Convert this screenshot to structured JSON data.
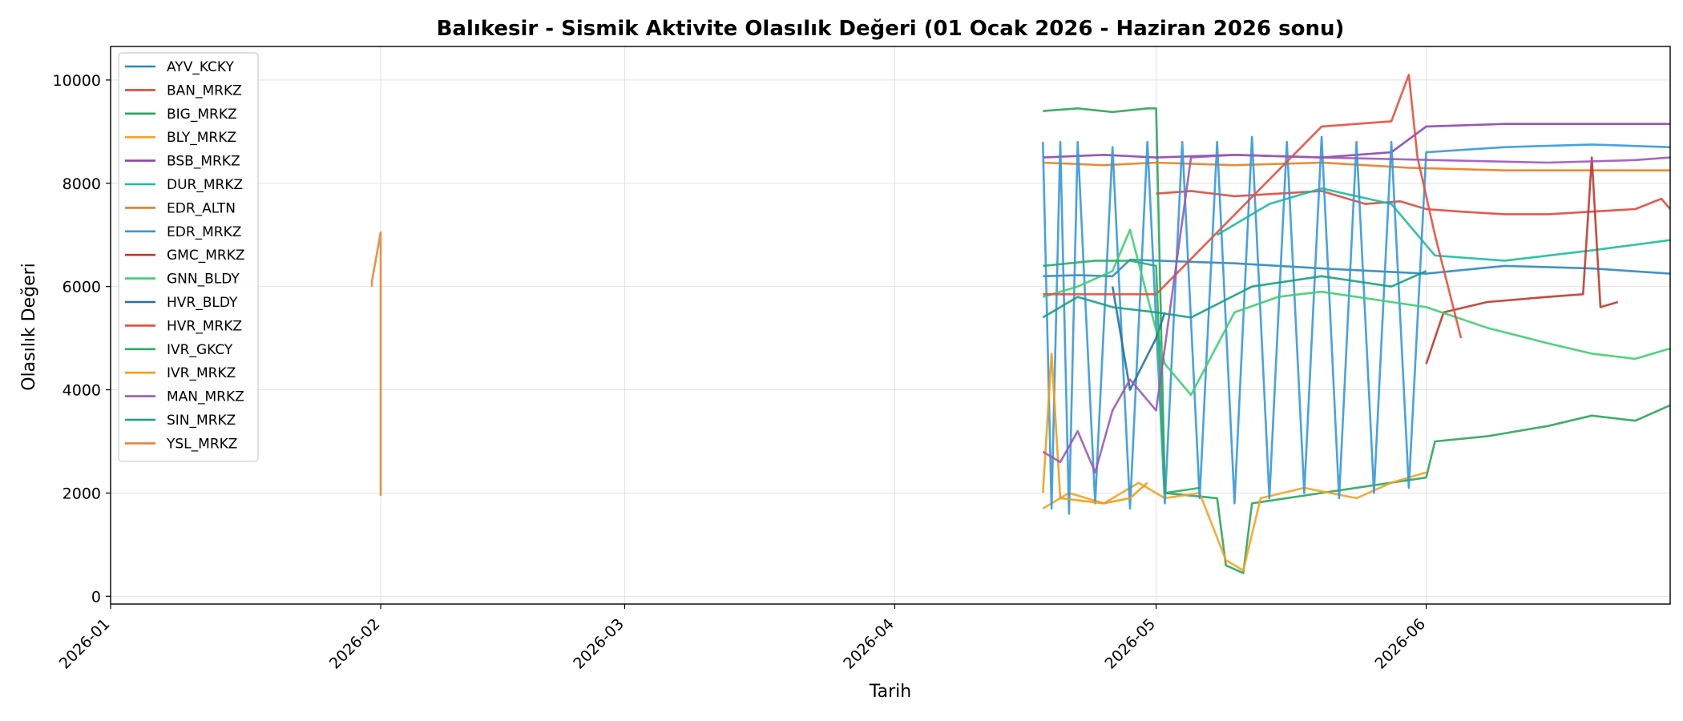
{
  "chart_data": {
    "type": "line",
    "title": "Balıkesir - Sismik Aktivite Olasılık Değeri (01 Ocak 2026 - Haziran 2026 sonu)",
    "xlabel": "Tarih",
    "ylabel": "Olasılık Değeri",
    "xlim": [
      "2026-01-01",
      "2026-06-29"
    ],
    "ylim": [
      -150,
      10650
    ],
    "x_ticks": [
      "2026-01",
      "2026-02",
      "2026-03",
      "2026-04",
      "2026-05",
      "2026-06"
    ],
    "y_ticks": [
      0,
      2000,
      4000,
      6000,
      8000,
      10000
    ],
    "grid": true,
    "legend_position": "upper-left",
    "series": [
      {
        "name": "AYV_KCKY",
        "color": "#2f86c0",
        "points": [
          [
            "2026-04-18",
            6200
          ],
          [
            "2026-04-22",
            6220
          ],
          [
            "2026-04-26",
            6200
          ],
          [
            "2026-04-28",
            6520
          ],
          [
            "2026-05-10",
            6450
          ],
          [
            "2026-05-20",
            6350
          ],
          [
            "2026-06-01",
            6250
          ],
          [
            "2026-06-10",
            6400
          ],
          [
            "2026-06-20",
            6350
          ],
          [
            "2026-06-29",
            6250
          ]
        ]
      },
      {
        "name": "BAN_MRKZ",
        "color": "#e0473c",
        "points": [
          [
            "2026-05-01",
            7800
          ],
          [
            "2026-05-05",
            7850
          ],
          [
            "2026-05-10",
            7750
          ],
          [
            "2026-05-15",
            7800
          ],
          [
            "2026-05-20",
            7850
          ],
          [
            "2026-05-25",
            7600
          ],
          [
            "2026-05-29",
            7650
          ],
          [
            "2026-06-01",
            7500
          ],
          [
            "2026-06-05",
            7450
          ],
          [
            "2026-06-10",
            7400
          ],
          [
            "2026-06-15",
            7400
          ],
          [
            "2026-06-20",
            7450
          ],
          [
            "2026-06-25",
            7500
          ],
          [
            "2026-06-28",
            7700
          ],
          [
            "2026-06-29",
            7500
          ]
        ]
      },
      {
        "name": "BIG_MRKZ",
        "color": "#2aa55a",
        "points": [
          [
            "2026-04-18",
            9400
          ],
          [
            "2026-04-22",
            9450
          ],
          [
            "2026-04-26",
            9380
          ],
          [
            "2026-04-30",
            9450
          ],
          [
            "2026-05-01",
            9450
          ],
          [
            "2026-05-02",
            2000
          ],
          [
            "2026-05-08",
            1900
          ],
          [
            "2026-05-09",
            600
          ],
          [
            "2026-05-11",
            450
          ],
          [
            "2026-05-12",
            1800
          ],
          [
            "2026-05-20",
            2000
          ],
          [
            "2026-06-01",
            2300
          ],
          [
            "2026-06-02",
            3000
          ],
          [
            "2026-06-08",
            3100
          ],
          [
            "2026-06-15",
            3300
          ],
          [
            "2026-06-20",
            3500
          ],
          [
            "2026-06-25",
            3400
          ],
          [
            "2026-06-29",
            3700
          ]
        ]
      },
      {
        "name": "BLY_MRKZ",
        "color": "#f2a323",
        "points": [
          [
            "2026-04-18",
            1700
          ],
          [
            "2026-04-21",
            2000
          ],
          [
            "2026-04-25",
            1800
          ],
          [
            "2026-04-29",
            2200
          ],
          [
            "2026-05-02",
            1900
          ],
          [
            "2026-05-06",
            2000
          ],
          [
            "2026-05-09",
            700
          ],
          [
            "2026-05-11",
            500
          ],
          [
            "2026-05-13",
            1900
          ],
          [
            "2026-05-18",
            2100
          ],
          [
            "2026-05-24",
            1900
          ],
          [
            "2026-05-28",
            2200
          ],
          [
            "2026-06-01",
            2400
          ]
        ]
      },
      {
        "name": "BSB_MRKZ",
        "color": "#8e44ad",
        "points": [
          [
            "2026-04-18",
            8500
          ],
          [
            "2026-04-25",
            8550
          ],
          [
            "2026-05-01",
            8500
          ],
          [
            "2026-05-10",
            8550
          ],
          [
            "2026-05-20",
            8500
          ],
          [
            "2026-05-28",
            8600
          ],
          [
            "2026-06-01",
            9100
          ],
          [
            "2026-06-10",
            9150
          ],
          [
            "2026-06-20",
            9150
          ],
          [
            "2026-06-29",
            9150
          ]
        ]
      },
      {
        "name": "DUR_MRKZ",
        "color": "#1abc9c",
        "points": [
          [
            "2026-05-08",
            7000
          ],
          [
            "2026-05-14",
            7600
          ],
          [
            "2026-05-20",
            7900
          ],
          [
            "2026-05-28",
            7600
          ],
          [
            "2026-06-02",
            6600
          ],
          [
            "2026-06-10",
            6500
          ],
          [
            "2026-06-20",
            6700
          ],
          [
            "2026-06-29",
            6900
          ]
        ]
      },
      {
        "name": "EDR_ALTN",
        "color": "#e67e22",
        "points": [
          [
            "2026-04-18",
            8400
          ],
          [
            "2026-04-25",
            8350
          ],
          [
            "2026-05-01",
            8400
          ],
          [
            "2026-05-10",
            8350
          ],
          [
            "2026-05-20",
            8400
          ],
          [
            "2026-05-30",
            8300
          ],
          [
            "2026-06-10",
            8250
          ],
          [
            "2026-06-20",
            8250
          ],
          [
            "2026-06-29",
            8250
          ]
        ]
      },
      {
        "name": "EDR_MRKZ",
        "color": "#3498db",
        "points": [
          [
            "2026-04-18",
            8800
          ],
          [
            "2026-04-19",
            1700
          ],
          [
            "2026-04-20",
            8800
          ],
          [
            "2026-04-21",
            1600
          ],
          [
            "2026-04-22",
            8800
          ],
          [
            "2026-04-24",
            1800
          ],
          [
            "2026-04-26",
            8700
          ],
          [
            "2026-04-28",
            1700
          ],
          [
            "2026-04-30",
            8800
          ],
          [
            "2026-05-02",
            1800
          ],
          [
            "2026-05-04",
            8800
          ],
          [
            "2026-05-06",
            1900
          ],
          [
            "2026-05-08",
            8800
          ],
          [
            "2026-05-10",
            1800
          ],
          [
            "2026-05-12",
            8900
          ],
          [
            "2026-05-14",
            1900
          ],
          [
            "2026-05-16",
            8800
          ],
          [
            "2026-05-18",
            2000
          ],
          [
            "2026-05-20",
            8900
          ],
          [
            "2026-05-22",
            1900
          ],
          [
            "2026-05-24",
            8800
          ],
          [
            "2026-05-26",
            2000
          ],
          [
            "2026-05-28",
            8800
          ],
          [
            "2026-05-30",
            2100
          ],
          [
            "2026-06-01",
            8600
          ],
          [
            "2026-06-10",
            8700
          ],
          [
            "2026-06-20",
            8750
          ],
          [
            "2026-06-29",
            8700
          ]
        ]
      },
      {
        "name": "GMC_MRKZ",
        "color": "#c0392b",
        "points": [
          [
            "2026-06-01",
            4500
          ],
          [
            "2026-06-03",
            5500
          ],
          [
            "2026-06-08",
            5700
          ],
          [
            "2026-06-15",
            5800
          ],
          [
            "2026-06-19",
            5850
          ],
          [
            "2026-06-20",
            8500
          ],
          [
            "2026-06-21",
            5600
          ],
          [
            "2026-06-23",
            5700
          ]
        ]
      },
      {
        "name": "GNN_BLDY",
        "color": "#3ccf6e",
        "points": [
          [
            "2026-04-18",
            5800
          ],
          [
            "2026-04-22",
            6000
          ],
          [
            "2026-04-26",
            6300
          ],
          [
            "2026-04-28",
            7100
          ],
          [
            "2026-05-02",
            4500
          ],
          [
            "2026-05-05",
            3900
          ],
          [
            "2026-05-10",
            5500
          ],
          [
            "2026-05-15",
            5800
          ],
          [
            "2026-05-20",
            5900
          ],
          [
            "2026-05-28",
            5700
          ],
          [
            "2026-06-01",
            5600
          ],
          [
            "2026-06-08",
            5200
          ],
          [
            "2026-06-15",
            4900
          ],
          [
            "2026-06-20",
            4700
          ],
          [
            "2026-06-25",
            4600
          ],
          [
            "2026-06-29",
            4800
          ]
        ]
      },
      {
        "name": "HVR_BLDY",
        "color": "#2471a3",
        "points": [
          [
            "2026-04-26",
            6000
          ],
          [
            "2026-04-28",
            4000
          ],
          [
            "2026-05-01",
            5000
          ],
          [
            "2026-05-02",
            5500
          ]
        ]
      },
      {
        "name": "HVR_MRKZ",
        "color": "#e74c3c",
        "points": [
          [
            "2026-04-18",
            5850
          ],
          [
            "2026-04-25",
            5850
          ],
          [
            "2026-05-01",
            5850
          ],
          [
            "2026-05-20",
            9100
          ],
          [
            "2026-05-24",
            9150
          ],
          [
            "2026-05-28",
            9200
          ],
          [
            "2026-05-30",
            10100
          ],
          [
            "2026-05-31",
            8500
          ],
          [
            "2026-06-02",
            7000
          ],
          [
            "2026-06-05",
            5000
          ]
        ]
      },
      {
        "name": "IVR_GKCY",
        "color": "#27ae60",
        "points": [
          [
            "2026-04-18",
            6400
          ],
          [
            "2026-04-24",
            6500
          ],
          [
            "2026-04-28",
            6500
          ],
          [
            "2026-05-01",
            6400
          ],
          [
            "2026-05-02",
            2000
          ],
          [
            "2026-05-06",
            2100
          ]
        ]
      },
      {
        "name": "IVR_MRKZ",
        "color": "#f39c12",
        "points": [
          [
            "2026-04-18",
            2000
          ],
          [
            "2026-04-19",
            4700
          ],
          [
            "2026-04-20",
            1900
          ],
          [
            "2026-04-25",
            1800
          ],
          [
            "2026-04-28",
            1900
          ],
          [
            "2026-04-30",
            2200
          ]
        ]
      },
      {
        "name": "MAN_MRKZ",
        "color": "#9b59b6",
        "points": [
          [
            "2026-04-18",
            2800
          ],
          [
            "2026-04-20",
            2600
          ],
          [
            "2026-04-22",
            3200
          ],
          [
            "2026-04-24",
            2400
          ],
          [
            "2026-04-26",
            3600
          ],
          [
            "2026-04-28",
            4200
          ],
          [
            "2026-05-01",
            3600
          ],
          [
            "2026-05-05",
            8500
          ],
          [
            "2026-05-10",
            8550
          ],
          [
            "2026-05-20",
            8500
          ],
          [
            "2026-06-15",
            8400
          ],
          [
            "2026-06-25",
            8450
          ],
          [
            "2026-06-29",
            8500
          ]
        ]
      },
      {
        "name": "SIN_MRKZ",
        "color": "#16a085",
        "points": [
          [
            "2026-04-18",
            5400
          ],
          [
            "2026-04-22",
            5800
          ],
          [
            "2026-04-26",
            5600
          ],
          [
            "2026-05-01",
            5500
          ],
          [
            "2026-05-05",
            5400
          ],
          [
            "2026-05-12",
            6000
          ],
          [
            "2026-05-20",
            6200
          ],
          [
            "2026-05-28",
            6000
          ],
          [
            "2026-06-01",
            6300
          ]
        ]
      },
      {
        "name": "YSL_MRKZ",
        "color": "#e8843a",
        "points": [
          [
            "2026-01-31",
            6000
          ],
          [
            "2026-01-31",
            6100
          ],
          [
            "2026-02-01",
            7050
          ],
          [
            "2026-02-01",
            1950
          ]
        ]
      }
    ]
  }
}
